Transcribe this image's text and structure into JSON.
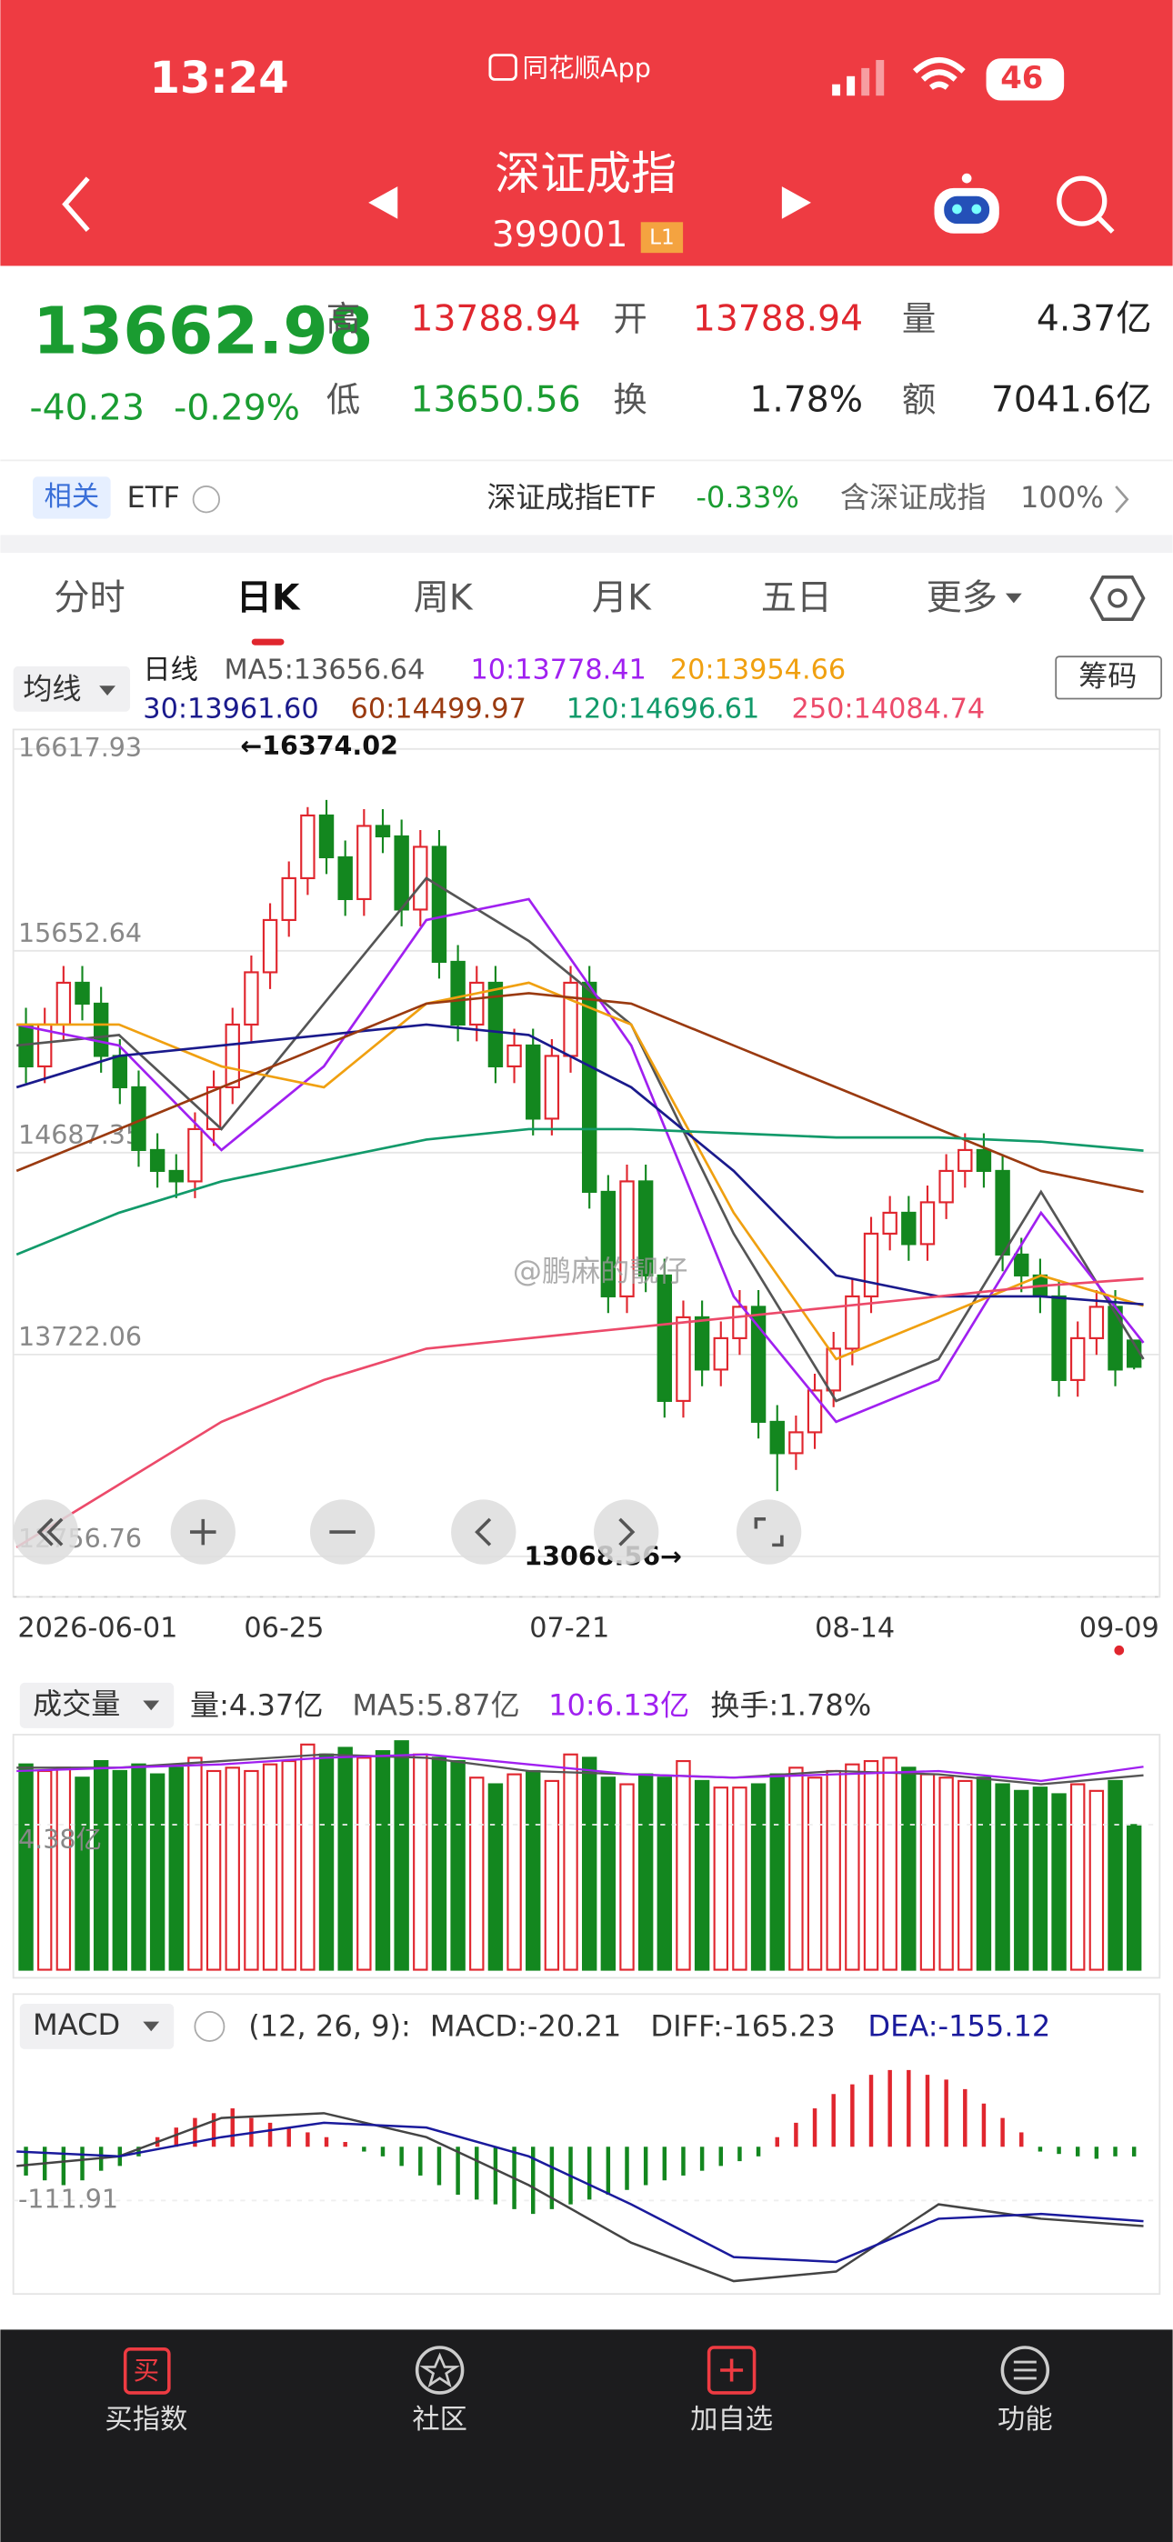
{
  "status": {
    "time": "13:24",
    "app": "同花顺App",
    "battery": "46"
  },
  "header": {
    "title": "深证成指",
    "code": "399001",
    "level": "L1"
  },
  "quote": {
    "price": "13662.98",
    "change": "-40.23",
    "pct": "-0.29%",
    "fields": [
      {
        "label": "高",
        "value": "13788.94"
      },
      {
        "label": "开",
        "value": "13788.94"
      },
      {
        "label": "量",
        "value": "4.37亿"
      },
      {
        "label": "低",
        "value": "13650.56"
      },
      {
        "label": "换",
        "value": "1.78%"
      },
      {
        "label": "额",
        "value": "7041.6亿"
      }
    ]
  },
  "etf": {
    "tag": "相关",
    "name": "ETF",
    "fund": "深证成指ETF",
    "fund_change": "-0.33%",
    "contains": "含深证成指",
    "weight": "100%"
  },
  "tabs": [
    "分时",
    "日K",
    "周K",
    "月K",
    "五日",
    "更多"
  ],
  "kline": {
    "indicator": "均线",
    "button": "筹码",
    "legend": [
      "日线",
      "MA5:13656.64",
      "10:13778.41",
      "20:13954.66",
      "30:13961.60",
      "60:14499.97",
      "120:14696.61",
      "250:14084.74"
    ],
    "ylim": [
      12756.76,
      16617.93
    ],
    "yticks": [
      16617.93,
      15652.64,
      14687.35,
      13722.06,
      12756.76
    ],
    "dates": [
      "2026-06-01",
      "06-25",
      "07-21",
      "08-14",
      "09-09"
    ],
    "high_label": "←16374.02",
    "low_label": "13068.56→",
    "watermark": "@鹏麻的靓仔",
    "up_color": "#e0262e",
    "down_color": "#13871f",
    "open": [
      15300,
      15100,
      15300,
      15500,
      15400,
      15150,
      15000,
      14700,
      14600,
      14550,
      14800,
      15000,
      15300,
      15550,
      15800,
      16000,
      16300,
      16100,
      15900,
      16250,
      16200,
      15850,
      16150,
      15600,
      15300,
      15500,
      15100,
      15200,
      14850,
      15150,
      15500,
      14500,
      14000,
      14550,
      14100,
      13500,
      13900,
      13650,
      13800,
      13950,
      13400,
      13250,
      13350,
      13550,
      13750,
      14000,
      14300,
      14400,
      14250,
      14450,
      14600,
      14700,
      14600,
      14200,
      14100,
      14000,
      13600,
      13800,
      13950,
      13788.94
    ],
    "close": [
      15100,
      15300,
      15500,
      15400,
      15150,
      15000,
      14700,
      14600,
      14550,
      14800,
      15000,
      15300,
      15550,
      15800,
      16000,
      16300,
      16100,
      15900,
      16250,
      16200,
      15850,
      16150,
      15600,
      15300,
      15500,
      15100,
      15200,
      14850,
      15150,
      15500,
      14500,
      14000,
      14550,
      14100,
      13500,
      13900,
      13650,
      13800,
      13950,
      13400,
      13250,
      13350,
      13550,
      13750,
      14000,
      14300,
      14400,
      14250,
      14450,
      14600,
      14700,
      14600,
      14200,
      14100,
      14000,
      13600,
      13800,
      13950,
      13650,
      13662.98
    ],
    "high": [
      15380,
      15380,
      15580,
      15580,
      15480,
      15230,
      15080,
      14780,
      14680,
      14880,
      15080,
      15380,
      15630,
      15880,
      16080,
      16340,
      16374.02,
      16180,
      16330,
      16330,
      16280,
      16230,
      16230,
      15680,
      15580,
      15580,
      15280,
      15280,
      15230,
      15580,
      15580,
      14580,
      14630,
      14630,
      14180,
      13980,
      13980,
      13880,
      14030,
      14030,
      13480,
      13430,
      13630,
      13830,
      14080,
      14380,
      14480,
      14480,
      14530,
      14680,
      14780,
      14780,
      14680,
      14280,
      14180,
      14080,
      13880,
      14030,
      14030,
      13788.94
    ],
    "low": [
      15020,
      15020,
      15220,
      15320,
      15070,
      14920,
      14620,
      14520,
      14470,
      14470,
      14720,
      14920,
      15220,
      15470,
      15720,
      15920,
      16020,
      15820,
      15820,
      16120,
      15770,
      15770,
      15520,
      15220,
      15220,
      15020,
      15020,
      14770,
      14770,
      15070,
      14420,
      13920,
      13920,
      14020,
      13420,
      13420,
      13570,
      13570,
      13720,
      13320,
      13068.56,
      13170,
      13270,
      13470,
      13670,
      13920,
      14220,
      14170,
      14170,
      14370,
      14520,
      14520,
      14120,
      14020,
      13920,
      13520,
      13520,
      13720,
      13570,
      13650.56
    ],
    "ma": [
      {
        "color": "#555555",
        "values": [
          15200,
          15250,
          14800,
          15400,
          16000,
          15700,
          15300,
          14300,
          13500,
          13700,
          14500,
          13700
        ]
      },
      {
        "color": "#a020f0",
        "values": [
          15300,
          15200,
          14700,
          15100,
          15800,
          15900,
          15200,
          14000,
          13400,
          13600,
          14400,
          13778
        ]
      },
      {
        "color": "#f0a010",
        "values": [
          15300,
          15300,
          15100,
          15000,
          15400,
          15500,
          15300,
          14400,
          13700,
          13900,
          14100,
          13955
        ]
      },
      {
        "color": "#1a1a8c",
        "values": [
          15000,
          15150,
          15200,
          15250,
          15300,
          15250,
          15000,
          14600,
          14100,
          14000,
          14000,
          13962
        ]
      },
      {
        "color": "#9a3a10",
        "values": [
          14600,
          14800,
          15000,
          15200,
          15400,
          15450,
          15400,
          15200,
          15000,
          14800,
          14600,
          14500
        ]
      },
      {
        "color": "#129a6a",
        "values": [
          14200,
          14400,
          14550,
          14650,
          14750,
          14800,
          14800,
          14780,
          14760,
          14760,
          14740,
          14697
        ]
      },
      {
        "color": "#ec4a6a",
        "values": [
          12800,
          13100,
          13400,
          13600,
          13750,
          13800,
          13850,
          13900,
          13950,
          14000,
          14050,
          14085
        ]
      }
    ]
  },
  "volume": {
    "indicator": "成交量",
    "legend": [
      "量:4.37亿",
      "MA5:5.87亿",
      "10:6.13亿",
      "换手:1.78%"
    ],
    "ylim": [
      0,
      7
    ],
    "yticks": [
      {
        "value": 4.38,
        "label": "4.38亿"
      }
    ],
    "values": [
      6.2,
      6.0,
      6.1,
      5.8,
      6.3,
      6.0,
      6.2,
      5.9,
      6.1,
      6.4,
      6.0,
      6.1,
      6.0,
      6.2,
      6.3,
      6.8,
      6.5,
      6.7,
      6.4,
      6.6,
      6.9,
      6.5,
      6.4,
      6.3,
      5.8,
      5.6,
      5.9,
      6.0,
      5.7,
      6.5,
      6.4,
      5.8,
      5.6,
      5.9,
      5.8,
      6.3,
      5.7,
      5.5,
      5.5,
      5.6,
      5.9,
      6.1,
      5.8,
      6.0,
      6.2,
      6.3,
      6.4,
      6.1,
      5.9,
      5.8,
      5.7,
      5.8,
      5.6,
      5.4,
      5.5,
      5.3,
      5.6,
      5.4,
      5.7,
      4.37
    ],
    "ma": [
      {
        "color": "#555555",
        "values": [
          6.1,
          6.1,
          6.3,
          6.5,
          6.4,
          6.0,
          5.9,
          5.8,
          6.0,
          5.9,
          5.6,
          5.87
        ]
      },
      {
        "color": "#a020f0",
        "values": [
          6.0,
          6.1,
          6.2,
          6.4,
          6.5,
          6.2,
          5.9,
          5.8,
          5.9,
          6.0,
          5.7,
          6.13
        ]
      }
    ]
  },
  "macd": {
    "indicator": "MACD",
    "params": "(12, 26, 9):",
    "legend": [
      "MACD:-20.21",
      "DIFF:-165.23",
      "DEA:-155.12"
    ],
    "ylim": [
      -300,
      200
    ],
    "yticks": [
      -111.91
    ],
    "hist": [
      -60,
      -70,
      -80,
      -70,
      -50,
      -40,
      -20,
      20,
      40,
      60,
      70,
      80,
      60,
      50,
      40,
      30,
      20,
      10,
      -10,
      -20,
      -40,
      -60,
      -80,
      -100,
      -110,
      -120,
      -130,
      -140,
      -130,
      -120,
      -110,
      -100,
      -90,
      -80,
      -70,
      -60,
      -50,
      -40,
      -30,
      -20,
      20,
      50,
      80,
      110,
      130,
      150,
      160,
      160,
      150,
      140,
      120,
      90,
      60,
      30,
      -10,
      -15,
      -20,
      -25,
      -20,
      -20.21
    ],
    "lines": [
      {
        "color": "#444444",
        "values": [
          -40,
          -20,
          60,
          70,
          20,
          -80,
          -200,
          -280,
          -260,
          -120,
          -150,
          -165.23
        ]
      },
      {
        "color": "#1a1a9c",
        "values": [
          -10,
          -20,
          20,
          50,
          40,
          -20,
          -120,
          -230,
          -240,
          -150,
          -140,
          -155.12
        ]
      }
    ]
  },
  "nav": {
    "icon": "买",
    "items": [
      "买指数",
      "社区",
      "加自选",
      "功能"
    ]
  }
}
